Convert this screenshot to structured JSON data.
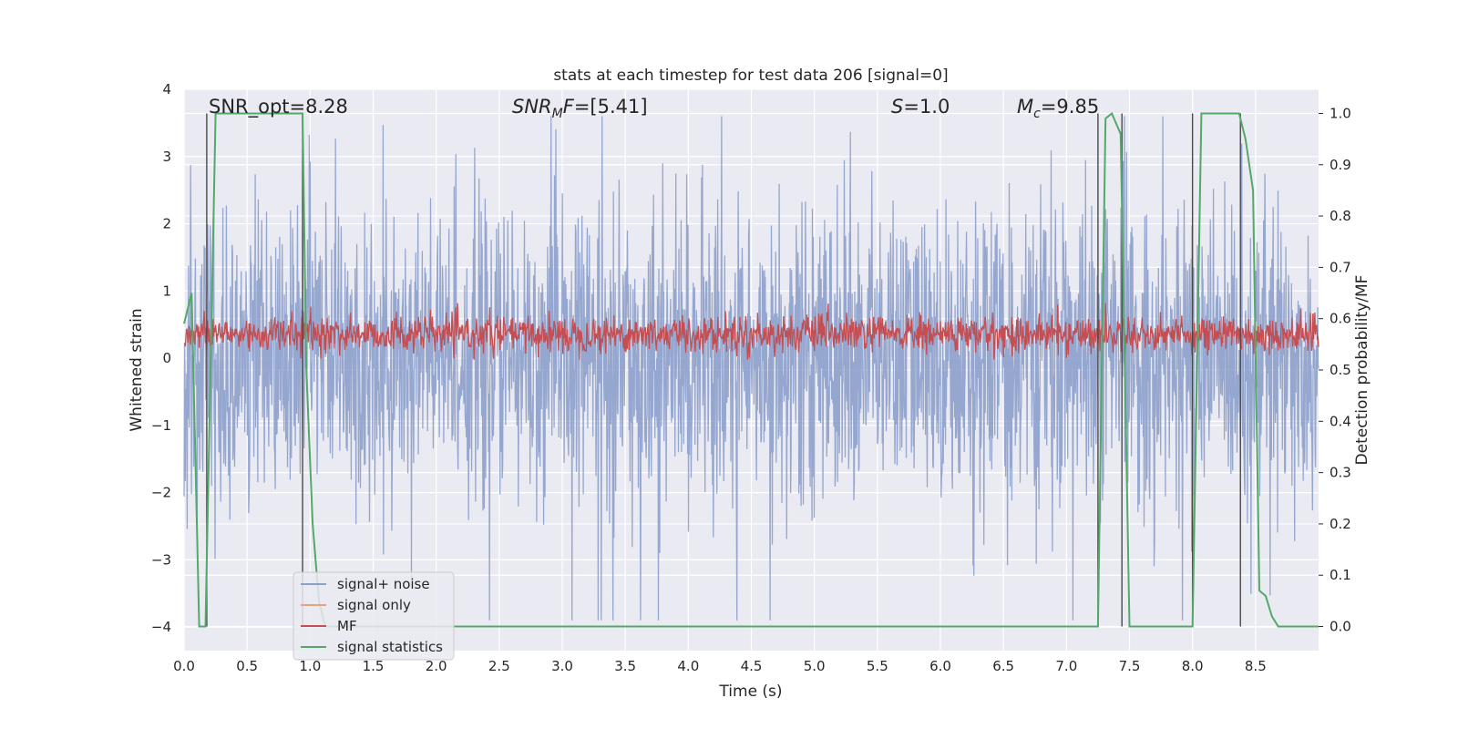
{
  "chart_data": {
    "type": "line",
    "title": "stats at each timestep for test data 206 [signal=0]",
    "xlabel": "Time (s)",
    "ylabel_left": "Whitened strain",
    "ylabel_right": "Detection probability/MF",
    "xlim": [
      0.0,
      9.0
    ],
    "ylim_left": [
      -4.35,
      4.0
    ],
    "ylim_right": [
      -0.047,
      1.047
    ],
    "x_ticks": [
      "0.0",
      "0.5",
      "1.0",
      "1.5",
      "2.0",
      "2.5",
      "3.0",
      "3.5",
      "4.0",
      "4.5",
      "5.0",
      "5.5",
      "6.0",
      "6.5",
      "7.0",
      "7.5",
      "8.0",
      "8.5"
    ],
    "y_left_ticks": [
      4,
      3,
      2,
      1,
      0,
      -1,
      -2,
      -3,
      -4
    ],
    "y_left_tick_labels": [
      "4",
      "3",
      "2",
      "1",
      "0",
      "−1",
      "−2",
      "−3",
      "−4"
    ],
    "y_right_ticks": [
      "1.0",
      "0.9",
      "0.8",
      "0.7",
      "0.6",
      "0.5",
      "0.4",
      "0.3",
      "0.2",
      "0.1",
      "0.0"
    ],
    "grid": true,
    "legend_placement": "lower-left",
    "annotations": {
      "snr_opt": "SNR_opt=8.28",
      "snr_mf_prefix": "SNR",
      "snr_mf_sub": "M",
      "snr_mf_rest": "F",
      "snr_mf_value": "=[5.41]",
      "s_label": "S",
      "s_value": "=1.0",
      "mc_label": "M",
      "mc_sub": "c",
      "mc_value": "=9.85"
    },
    "series": [
      {
        "name": "signal+ noise",
        "color": "#8da0cb",
        "axis": "left",
        "description": "whitened noise, roughly within ±2.5 with spikes to ±3.5"
      },
      {
        "name": "signal only",
        "color": "#e8a37c",
        "axis": "left",
        "values": "zero throughout"
      },
      {
        "name": "MF",
        "color": "#c44e52",
        "axis": "right",
        "description": "matched filter output around 0.55–0.6"
      },
      {
        "name": "signal statistics",
        "color": "#55a868",
        "axis": "right",
        "x": [
          0.0,
          0.06,
          0.12,
          0.17,
          0.25,
          0.94,
          0.97,
          1.02,
          1.07,
          1.12,
          7.25,
          7.31,
          7.36,
          7.43,
          7.5,
          7.55,
          8.0,
          8.07,
          8.37,
          8.42,
          8.48,
          8.53,
          8.58,
          8.63,
          8.68,
          9.0
        ],
        "values": [
          0.59,
          0.65,
          0.0,
          0.0,
          1.0,
          1.0,
          0.5,
          0.2,
          0.05,
          0.0,
          0.0,
          0.99,
          1.0,
          0.96,
          0.0,
          0.0,
          0.0,
          1.0,
          1.0,
          0.95,
          0.85,
          0.07,
          0.06,
          0.02,
          0.0,
          0.0
        ]
      }
    ],
    "vertical_markers_x": [
      0.18,
      0.94,
      7.25,
      7.44,
      8.0,
      8.38
    ]
  },
  "legend": [
    {
      "label": "signal+ noise",
      "color": "#8da0cb"
    },
    {
      "label": "signal only",
      "color": "#e8a37c"
    },
    {
      "label": "MF",
      "color": "#c44e52"
    },
    {
      "label": "signal statistics",
      "color": "#55a868"
    }
  ]
}
